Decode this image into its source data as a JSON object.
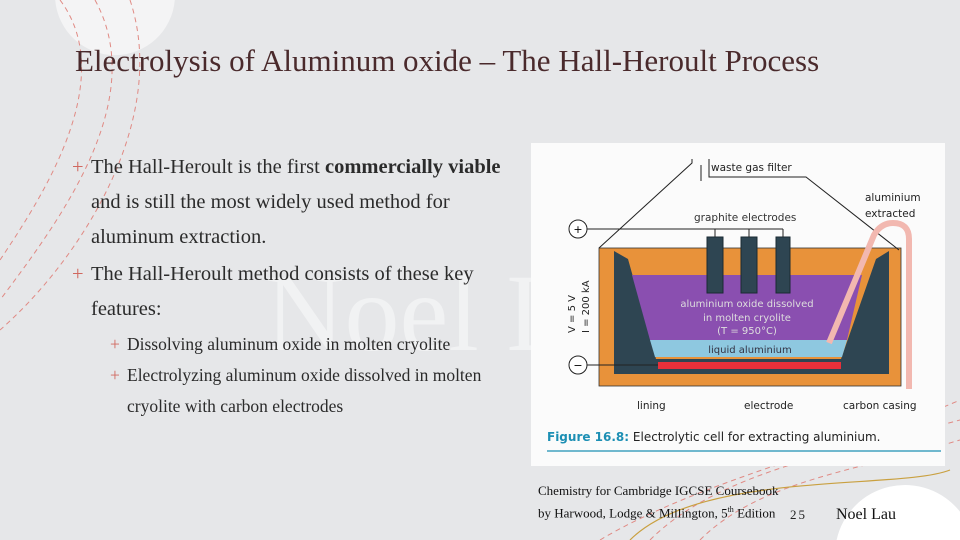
{
  "slide": {
    "title": "Electrolysis of  Aluminum oxide – The Hall-Heroult Process",
    "watermark": "Noel Lau",
    "bullets": [
      {
        "pre": "The Hall-Heroult is the first ",
        "bold": "commercially viable",
        "post": " and is still the most widely used method for aluminum extraction."
      },
      {
        "text": "The Hall-Heroult method consists of these key features:",
        "sub": [
          "Dissolving aluminum oxide in molten cryolite",
          "Electrolyzing aluminum oxide dissolved in molten cryolite with carbon electrodes"
        ]
      }
    ],
    "bullet_symbol": "+",
    "citation_line1": "Chemistry for Cambridge IGCSE Coursebook",
    "citation_line2_pre": "by Harwood, Lodge & Millington, 5",
    "citation_sup": "th",
    "citation_line2_post": " Edition",
    "page_number": "25",
    "author": "Noel Lau"
  },
  "figure": {
    "labels": {
      "waste_gas": "waste gas filter",
      "aluminium_extracted_1": "aluminium",
      "aluminium_extracted_2": "extracted",
      "graphite": "graphite electrodes",
      "voltage": "V = 5 V",
      "current": "I = 200 kA",
      "solution_1": "aluminium oxide dissolved",
      "solution_2": "in molten cryolite",
      "solution_3": "(T = 950°C)",
      "liquid": "liquid aluminium",
      "lining": "lining",
      "electrode": "electrode",
      "casing": "carbon casing",
      "plus": "+",
      "minus": "−"
    },
    "caption_num": "Figure 16.8:",
    "caption_text": " Electrolytic cell for extracting aluminium.",
    "colors": {
      "casing": "#e8923a",
      "carbon": "#2e4552",
      "electrolyte": "#8a4fb0",
      "liquid": "#8ec8e0",
      "electrode": "#e8303a",
      "pipe": "#f2b8b0",
      "caption": "#1c8fb4"
    }
  }
}
